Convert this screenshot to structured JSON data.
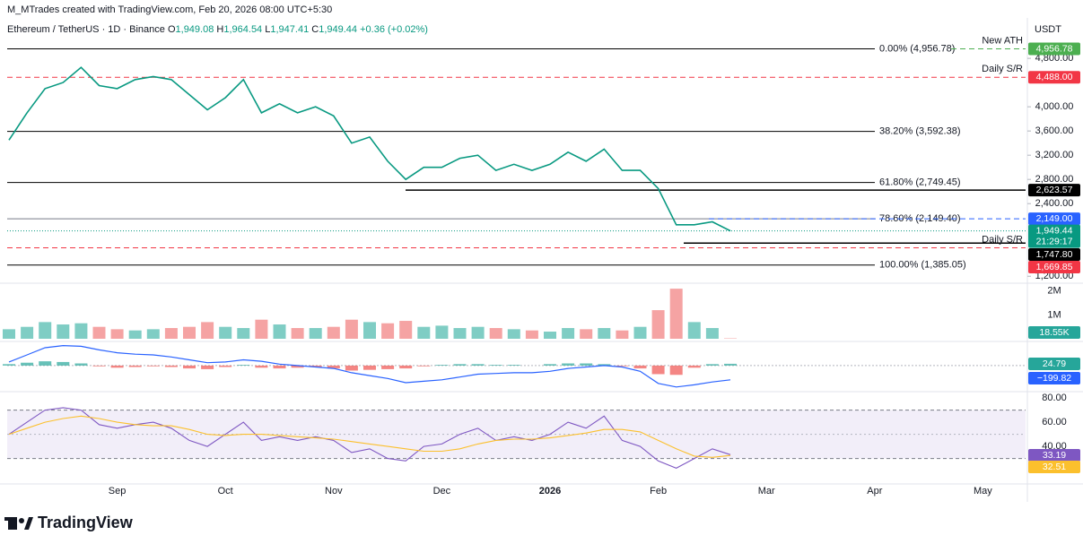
{
  "header": {
    "credit": "M_MTrades created with TradingView.com, Feb 20, 2026 08:00 UTC+5:30",
    "symbol": "Ethereum / TetherUS · 1D · Binance",
    "ohlc": [
      {
        "key": "O",
        "value": "1,949.08"
      },
      {
        "key": "H",
        "value": "1,964.54"
      },
      {
        "key": "L",
        "value": "1,947.41"
      },
      {
        "key": "C",
        "value": "1,949.44"
      }
    ],
    "change": "+0.36 (+0.02%)",
    "currency": "USDT"
  },
  "footer": {
    "brand": "TradingView"
  },
  "chart_data": [
    {
      "type": "line",
      "color": "#089981",
      "categories": [
        null,
        null,
        null,
        null,
        null,
        null,
        "Sep",
        null,
        null,
        null,
        null,
        null,
        "Oct",
        null,
        null,
        null,
        null,
        null,
        "Nov",
        null,
        null,
        null,
        null,
        null,
        "Dec",
        null,
        null,
        null,
        null,
        null,
        "2026",
        null,
        null,
        null,
        null,
        null,
        "Feb",
        null,
        null,
        null,
        null,
        null,
        "Mar",
        null,
        null,
        null,
        null,
        null,
        "Apr",
        null,
        null,
        null,
        null,
        null,
        "May",
        null,
        null
      ],
      "values": [
        3450,
        3900,
        4300,
        4400,
        4650,
        4350,
        4300,
        4450,
        4500,
        4450,
        4200,
        3950,
        4150,
        4450,
        3900,
        4050,
        3900,
        4000,
        3850,
        3400,
        3500,
        3100,
        2800,
        3000,
        3000,
        3150,
        3200,
        2950,
        3050,
        2950,
        3050,
        3250,
        3100,
        3300,
        2950,
        2950,
        2650,
        2050,
        2050,
        2100,
        1949.44,
        null,
        null,
        null,
        null,
        null,
        null,
        null,
        null,
        null,
        null,
        null,
        null,
        null,
        null,
        null,
        null
      ],
      "ylim": [
        1100,
        5320
      ],
      "yticks": [
        {
          "value": 1200,
          "label": "1,200.00"
        },
        {
          "value": 2400,
          "label": "2,400.00"
        },
        {
          "value": 2800,
          "label": "2,800.00"
        },
        {
          "value": 3200,
          "label": "3,200.00"
        },
        {
          "value": 3600,
          "label": "3,600.00"
        },
        {
          "value": 4000,
          "label": "4,000.00"
        },
        {
          "value": 4800,
          "label": "4,800.00"
        }
      ],
      "last_label": "1,949.44",
      "countdown": "21:29:17",
      "levels": [
        {
          "kind": "fib",
          "label": "0.00% (4,956.78)",
          "value": 4956.78,
          "color": "#000000",
          "note": "New ATH",
          "note_color": "#4caf50",
          "value_label": "4,956.78"
        },
        {
          "kind": "sr",
          "value": 4488,
          "color": "#f23645",
          "note": "Daily S/R",
          "value_label": "4,488.00"
        },
        {
          "kind": "fib",
          "label": "38.20% (3,592.38)",
          "value": 3592.38,
          "color": "#000000"
        },
        {
          "kind": "fib",
          "label": "61.80% (2,749.45)",
          "value": 2749.45,
          "color": "#000000"
        },
        {
          "kind": "ray",
          "value": 2623.57,
          "color": "#000000",
          "value_label": "2,623.57"
        },
        {
          "kind": "fib",
          "label": "78.60% (2,149.40)",
          "value": 2149.4,
          "color": "#787b86"
        },
        {
          "kind": "dashed",
          "value": 2149,
          "color": "#2962ff",
          "value_label": "2,149.00"
        },
        {
          "kind": "ray",
          "value": 1747.8,
          "color": "#000000",
          "value_label": "1,747.80"
        },
        {
          "kind": "sr",
          "value": 1669.85,
          "color": "#f23645",
          "note": "Daily S/R",
          "value_label": "1,669.85"
        },
        {
          "kind": "fib",
          "label": "100.00% (1,385.05)",
          "value": 1385.05,
          "color": "#000000"
        }
      ]
    },
    {
      "type": "bar",
      "up_color": "#7fcdc4",
      "down_color": "#f5a3a3",
      "values": [
        400000,
        500000,
        700000,
        600000,
        650000,
        500000,
        400000,
        350000,
        400000,
        450000,
        500000,
        700000,
        500000,
        450000,
        800000,
        600000,
        450000,
        450000,
        500000,
        800000,
        700000,
        650000,
        750000,
        500000,
        550000,
        450000,
        500000,
        450000,
        400000,
        350000,
        300000,
        450000,
        400000,
        450000,
        350000,
        500000,
        1200000,
        2100000,
        700000,
        450000,
        18550
      ],
      "value_labels": [
        null,
        null,
        null,
        null,
        null,
        null,
        null,
        null,
        null,
        null,
        null,
        null,
        null,
        null,
        null,
        null,
        null,
        null,
        null,
        null,
        null,
        null,
        null,
        null,
        null,
        null,
        null,
        null,
        null,
        null,
        null,
        null,
        null,
        null,
        null,
        null,
        null,
        null,
        null,
        null,
        "18.55K"
      ],
      "ylim": [
        0,
        2330000
      ],
      "yticks": [
        {
          "value": 1000000,
          "label": "1M"
        },
        {
          "value": 2000000,
          "label": "2M"
        }
      ]
    },
    {
      "type": "macd",
      "ylim": [
        -340,
        300
      ],
      "series": [
        {
          "name": "Histogram",
          "color": "#26a69a",
          "down_color": "#ef5350",
          "values": [
            20,
            40,
            60,
            50,
            30,
            -10,
            -30,
            -20,
            -10,
            -20,
            -40,
            -50,
            -20,
            10,
            -30,
            -40,
            -30,
            -20,
            -40,
            -70,
            -60,
            -50,
            -40,
            -10,
            10,
            20,
            20,
            10,
            10,
            0,
            20,
            30,
            30,
            20,
            -10,
            -40,
            -120,
            -130,
            -30,
            20,
            24.79
          ],
          "last_label": "24.79"
        },
        {
          "name": "MACD",
          "color": "#2962ff",
          "values": [
            50,
            150,
            250,
            280,
            270,
            220,
            180,
            160,
            150,
            120,
            80,
            40,
            50,
            80,
            60,
            20,
            0,
            -20,
            -40,
            -100,
            -140,
            -180,
            -240,
            -220,
            -200,
            -160,
            -120,
            -110,
            -100,
            -100,
            -80,
            -40,
            -20,
            0,
            -20,
            -80,
            -250,
            -300,
            -270,
            -230,
            -199.82
          ],
          "last_label": "−199.82"
        }
      ]
    },
    {
      "type": "rsi",
      "ylim": [
        9,
        83
      ],
      "yticks": [
        {
          "value": 40,
          "label": "40.00"
        },
        {
          "value": 60,
          "label": "60.00"
        },
        {
          "value": 80,
          "label": "80.00"
        }
      ],
      "band": [
        30,
        70
      ],
      "midline": 50,
      "series": [
        {
          "name": "RSI",
          "color": "#7e57c2",
          "values": [
            50,
            60,
            70,
            72,
            70,
            58,
            55,
            58,
            60,
            55,
            45,
            40,
            50,
            60,
            45,
            48,
            45,
            48,
            45,
            35,
            38,
            30,
            28,
            40,
            42,
            50,
            55,
            45,
            48,
            45,
            50,
            60,
            55,
            65,
            45,
            40,
            28,
            22,
            30,
            38,
            33.19
          ],
          "last_label": "33.19"
        },
        {
          "name": "RSI MA",
          "color": "#fbc02d",
          "values": [
            50,
            55,
            60,
            63,
            65,
            63,
            60,
            58,
            57,
            57,
            54,
            50,
            49,
            50,
            50,
            49,
            48,
            47,
            46,
            44,
            42,
            40,
            38,
            36,
            36,
            38,
            42,
            45,
            46,
            46,
            47,
            49,
            51,
            54,
            54,
            52,
            45,
            38,
            32,
            31,
            32.51
          ],
          "last_label": "32.51"
        }
      ]
    }
  ]
}
